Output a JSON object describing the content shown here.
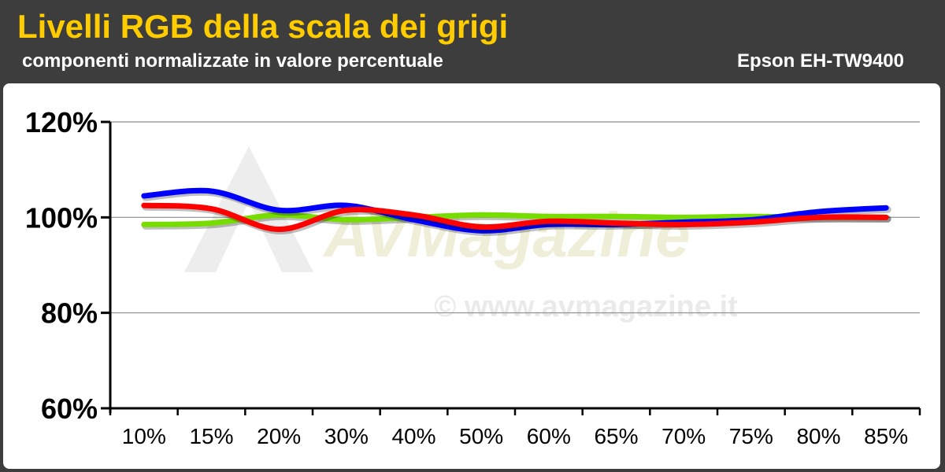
{
  "header": {
    "title": "Livelli RGB della scala dei grigi",
    "subtitle": "componenti normalizzate in valore percentuale",
    "model": "Epson EH-TW9400"
  },
  "watermark": {
    "logo_text": "AVMagazine",
    "copyright": "© www.avmagazine.it"
  },
  "chart_data": {
    "type": "line",
    "title": "Livelli RGB della scala dei grigi",
    "subtitle": "componenti normalizzate in valore percentuale",
    "categories": [
      "10%",
      "15%",
      "20%",
      "30%",
      "40%",
      "50%",
      "60%",
      "65%",
      "70%",
      "75%",
      "80%",
      "85%"
    ],
    "ylim": [
      60,
      120
    ],
    "yticks": [
      60,
      80,
      100,
      120
    ],
    "ytick_labels": [
      "60%",
      "80%",
      "100%",
      "120%"
    ],
    "grid": true,
    "series": [
      {
        "color": "#77dd00",
        "values": [
          98.5,
          98.8,
          100.5,
          99.5,
          100.0,
          100.5,
          100.2,
          100.2,
          100.0,
          100.2,
          100.0,
          100.0
        ]
      },
      {
        "color": "#0000ff",
        "values": [
          104.5,
          105.5,
          101.5,
          102.5,
          99.5,
          97.2,
          98.5,
          98.5,
          99.0,
          99.5,
          101.2,
          102.0
        ]
      },
      {
        "color": "#ff0000",
        "values": [
          102.5,
          101.8,
          97.5,
          101.5,
          100.5,
          98.0,
          99.2,
          98.8,
          98.5,
          99.0,
          100.0,
          100.0
        ]
      }
    ]
  }
}
